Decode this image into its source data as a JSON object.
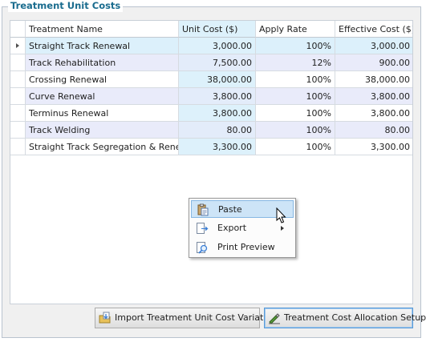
{
  "group": {
    "title": "Treatment Unit Costs"
  },
  "grid": {
    "columns": [
      "Treatment Name",
      "Unit Cost ($)",
      "Apply Rate",
      "Effective Cost ($)"
    ],
    "rows": [
      {
        "name": "Straight Track Renewal",
        "unit_cost": "3,000.00",
        "apply_rate": "100%",
        "effective_cost": "3,000.00"
      },
      {
        "name": "Track Rehabilitation",
        "unit_cost": "7,500.00",
        "apply_rate": "12%",
        "effective_cost": "900.00"
      },
      {
        "name": "Crossing Renewal",
        "unit_cost": "38,000.00",
        "apply_rate": "100%",
        "effective_cost": "38,000.00"
      },
      {
        "name": "Curve Renewal",
        "unit_cost": "3,800.00",
        "apply_rate": "100%",
        "effective_cost": "3,800.00"
      },
      {
        "name": "Terminus Renewal",
        "unit_cost": "3,800.00",
        "apply_rate": "100%",
        "effective_cost": "3,800.00"
      },
      {
        "name": "Track Welding",
        "unit_cost": "80.00",
        "apply_rate": "100%",
        "effective_cost": "80.00"
      },
      {
        "name": "Straight Track Segregation & Renewal",
        "unit_cost": "3,300.00",
        "apply_rate": "100%",
        "effective_cost": "3,300.00"
      }
    ]
  },
  "context_menu": {
    "items": [
      {
        "label": "Paste",
        "icon": "paste-icon",
        "highlighted": true
      },
      {
        "label": "Export",
        "icon": "export-icon",
        "submenu": true
      },
      {
        "label": "Print Preview",
        "icon": "print-preview-icon"
      }
    ]
  },
  "buttons": {
    "import_label": "Import Treatment Unit Cost Variation",
    "allocation_label": "Treatment Cost Allocation Setup"
  },
  "colors": {
    "title": "#1a6c8e",
    "unit_cost_column": "#ddf1fb",
    "alt_row": "#e9ebfa",
    "menu_highlight": "#cde4f7"
  }
}
